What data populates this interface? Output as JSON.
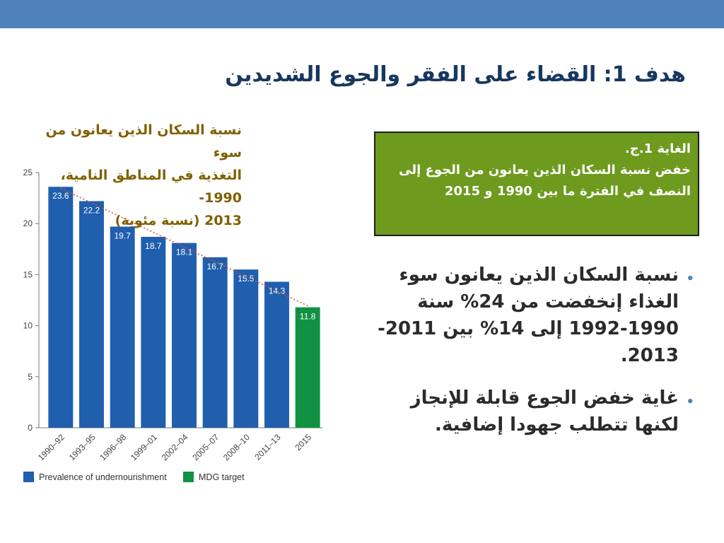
{
  "slide": {
    "title": "هدف 1: القضاء على الفقر والجوع الشديدين",
    "chart_caption": {
      "line1": "نسبة السكان الذين يعانون من سوء",
      "line2": "التغذية في المناطق النامية، 1990-",
      "line3": "2013 (نسبة مئوية)"
    },
    "goal_box": {
      "line1": "الغاية 1.ج.",
      "line2": "خفض نسبة السكان الذين يعانون من الجوع إلى",
      "line3": "النصف في الفترة ما بين 1990 و 2015"
    },
    "bullets": [
      {
        "text": "نسبة السكان الذين يعانون سوء الغذاء إنخفضت من 24% سنة 1990-1992 إلى  14% بين 2011-2013."
      },
      {
        "text": "غاية خفض الجوع قابلة للإنجاز لكنها تتطلب جهودا إضافية."
      }
    ],
    "colors": {
      "header_bar": "#4f81bd",
      "title": "#17375e",
      "goal_box_bg": "#6e9a1e",
      "bar_blue": "#1f5fae",
      "bar_green": "#119142",
      "trend": "#e0463a",
      "caption": "#7f6000"
    }
  },
  "chart_data": {
    "type": "bar",
    "categories": [
      "1990–92",
      "1993–95",
      "1996–98",
      "1999–01",
      "2002–04",
      "2005–07",
      "2008–10",
      "2011–13",
      "2015"
    ],
    "values": [
      23.6,
      22.2,
      19.7,
      18.7,
      18.1,
      16.7,
      15.5,
      14.3,
      11.8
    ],
    "value_labels": [
      "23.6",
      "22.2",
      "19.7",
      "18.7",
      "18.1",
      "16.7",
      "15.5",
      "14.3",
      "11.8"
    ],
    "series_by_bar": [
      "Prevalence of undernourishment",
      "Prevalence of undernourishment",
      "Prevalence of undernourishment",
      "Prevalence of undernourishment",
      "Prevalence of undernourishment",
      "Prevalence of undernourishment",
      "Prevalence of undernourishment",
      "Prevalence of undernourishment",
      "MDG target"
    ],
    "legend": [
      {
        "name": "Prevalence of undernourishment",
        "color": "#1f5fae"
      },
      {
        "name": "MDG target",
        "color": "#119142"
      }
    ],
    "ylim": [
      0,
      25
    ],
    "yticks": [
      "0",
      "5",
      "10",
      "15",
      "20",
      "25"
    ],
    "trendline": {
      "from": 23.6,
      "to": 11.8,
      "style": "dotted",
      "color": "#e0463a"
    },
    "grid": false,
    "legend_position": "bottom-left"
  }
}
